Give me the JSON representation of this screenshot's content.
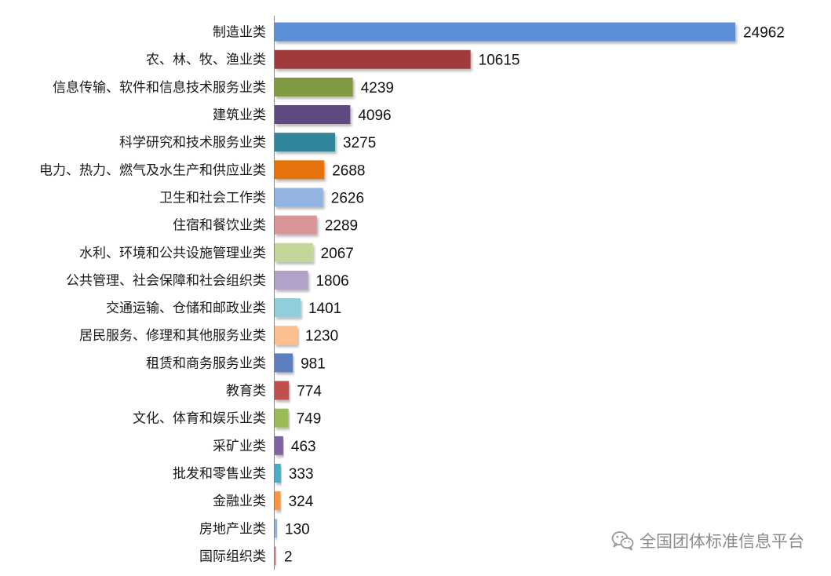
{
  "chart_data": {
    "type": "bar",
    "orientation": "horizontal",
    "categories": [
      "制造业类",
      "农、林、牧、渔业类",
      "信息传输、软件和信息技术服务业类",
      "建筑业类",
      "科学研究和技术服务业类",
      "电力、热力、燃气及水生产和供应业类",
      "卫生和社会工作类",
      "住宿和餐饮业类",
      "水利、环境和公共设施管理业类",
      "公共管理、社会保障和社会组织类",
      "交通运输、仓储和邮政业类",
      "居民服务、修理和其他服务业类",
      "租赁和商务服务业类",
      "教育类",
      "文化、体育和娱乐业类",
      "采矿业类",
      "批发和零售业类",
      "金融业类",
      "房地产业类",
      "国际组织类"
    ],
    "values": [
      24962,
      10615,
      4239,
      4096,
      3275,
      2688,
      2626,
      2289,
      2067,
      1806,
      1401,
      1230,
      981,
      774,
      749,
      463,
      333,
      324,
      130,
      2
    ],
    "colors": [
      "#5b8fd6",
      "#a03a3a",
      "#7f9a3f",
      "#5e4a80",
      "#31869b",
      "#e5730e",
      "#93b3e0",
      "#d99598",
      "#c4d79a",
      "#b2a2c8",
      "#92cddc",
      "#fac08f",
      "#5b7fbf",
      "#c0504d",
      "#9bbb59",
      "#8064a2",
      "#4bacc6",
      "#f79646",
      "#95b3d7",
      "#d99694"
    ],
    "xlim": [
      0,
      25000
    ],
    "grid": false,
    "legend": "none",
    "data_labels": true
  },
  "watermark": {
    "text": "全国团体标准信息平台",
    "icon": "wechat-icon"
  }
}
